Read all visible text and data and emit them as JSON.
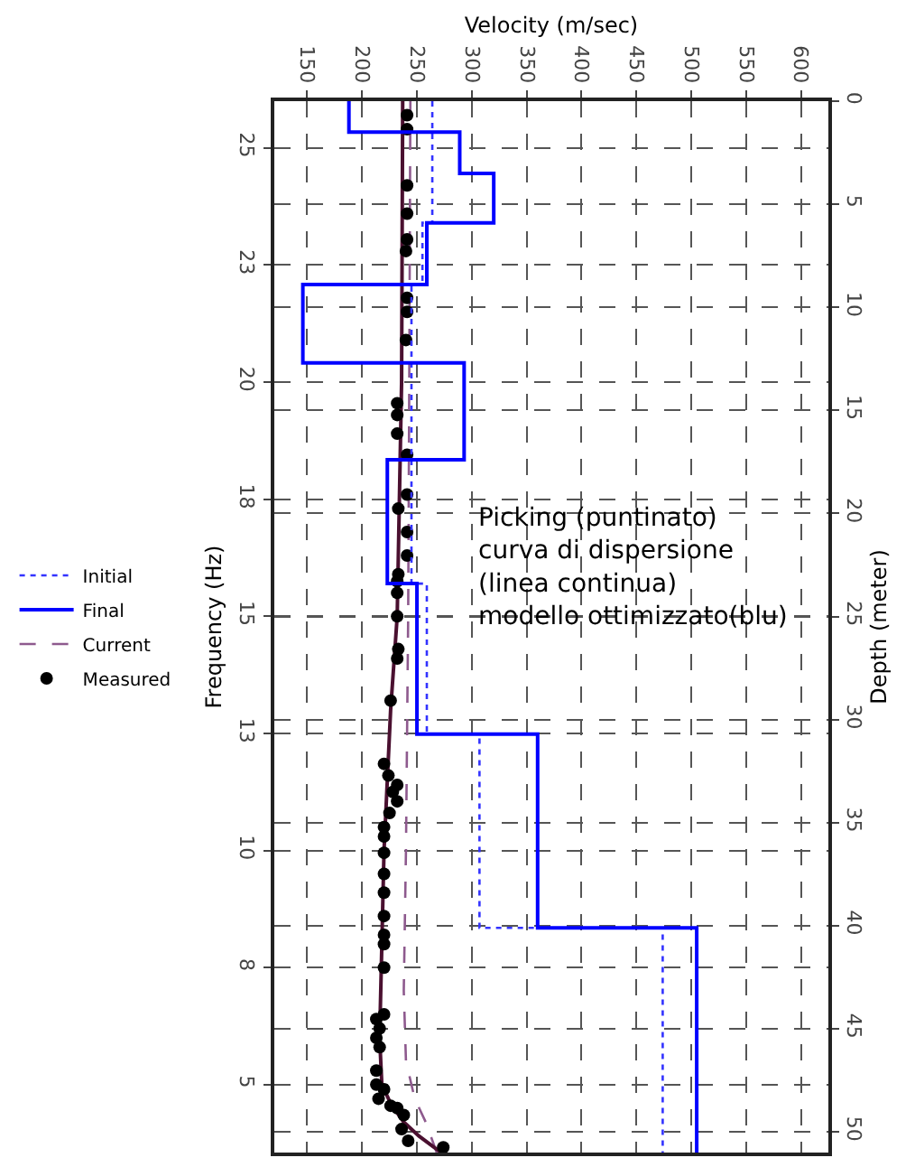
{
  "chart_data": {
    "type": "line",
    "xlabel": "Velocity (m/sec)",
    "ylabel": "Frequency (Hz)",
    "y2label": "Depth (meter)",
    "xlim": [
      120,
      625
    ],
    "xticks": [
      150,
      200,
      250,
      300,
      350,
      400,
      450,
      500,
      550,
      600
    ],
    "ylim": [
      3.55,
      26
    ],
    "yticks": [
      25,
      {
        "value": 22.5,
        "label": "23"
      },
      20,
      {
        "value": 17.5,
        "label": "18"
      },
      15,
      {
        "value": 12.5,
        "label": "13"
      },
      10,
      {
        "value": 7.5,
        "label": "8"
      },
      5
    ],
    "y2lim": [
      51,
      0
    ],
    "y2ticks": [
      0,
      5,
      10,
      15,
      20,
      25,
      30,
      35,
      40,
      45,
      50
    ],
    "grid": true,
    "legend": "left",
    "annotations": [
      "Picking (puntinato)\ncurva di dispersione\n(linea continua)\nmodello ottimizzato(blu)"
    ],
    "series": [
      {
        "name": "Initial",
        "color": "#3333ff",
        "axis": "y2",
        "line_style": "dotted",
        "x": [
          264,
          264,
          255,
          255,
          245,
          245,
          259,
          259,
          307,
          307,
          474,
          474
        ],
        "values": [
          0,
          5.9,
          5.9,
          8.9,
          8.9,
          23.4,
          23.4,
          30.7,
          30.7,
          40.1,
          40.1,
          51
        ]
      },
      {
        "name": "Final",
        "color": "#0000ff",
        "axis": "y2",
        "line_style": "solid",
        "x": [
          188,
          188,
          289,
          289,
          320,
          320,
          259,
          259,
          146,
          146,
          293,
          293,
          223,
          223,
          250,
          250,
          360,
          360,
          505,
          505
        ],
        "values": [
          0,
          1.5,
          1.5,
          3.5,
          3.5,
          5.9,
          5.9,
          8.9,
          8.9,
          12.7,
          12.7,
          17.4,
          17.4,
          23.4,
          23.4,
          30.7,
          30.7,
          40.1,
          40.1,
          51
        ]
      },
      {
        "name": "Current",
        "color": "#8e5a8e",
        "line_style": "dashed",
        "x": [
          244,
          243,
          242,
          240,
          238,
          240,
          248,
          258,
          268
        ],
        "values": [
          26,
          20,
          15,
          10,
          7,
          5.5,
          4.7,
          4.2,
          3.55
        ]
      },
      {
        "color": "#4a1030",
        "line_style": "solid",
        "x": [
          237,
          236,
          232,
          226,
          222,
          220,
          218,
          216,
          218,
          226,
          238,
          252,
          272
        ],
        "values": [
          26,
          20,
          15,
          13,
          11,
          10,
          8,
          6,
          5,
          4.6,
          4.2,
          3.9,
          3.55
        ]
      },
      {
        "name": "Measured",
        "color": "#000000",
        "type": "scatter",
        "marker": "circle",
        "x": [
          241,
          241,
          241,
          241,
          241,
          240,
          241,
          241,
          240,
          232,
          232,
          232,
          241,
          241,
          233,
          241,
          241,
          233,
          232,
          232,
          232,
          233,
          232,
          226,
          220,
          224,
          232,
          228,
          232,
          225,
          220,
          220,
          220,
          220,
          220,
          220,
          220,
          220,
          220,
          220,
          213,
          216,
          213,
          216,
          213,
          213,
          220,
          215,
          226,
          232,
          238,
          236,
          242,
          274
        ],
        "values": [
          25.7,
          25.4,
          24.2,
          23.6,
          23.05,
          22.8,
          21.8,
          21.5,
          20.9,
          19.55,
          19.3,
          18.9,
          18.45,
          17.6,
          17.3,
          16.8,
          16.3,
          15.9,
          15.75,
          15.5,
          15.0,
          14.3,
          14.1,
          13.2,
          11.85,
          11.6,
          11.4,
          11.25,
          11.05,
          10.8,
          10.5,
          10.3,
          9.95,
          9.5,
          9.1,
          8.6,
          8.2,
          8.0,
          7.5,
          6.5,
          6.4,
          6.2,
          6.0,
          5.8,
          5.3,
          5.0,
          4.9,
          4.7,
          4.55,
          4.5,
          4.35,
          4.05,
          3.8,
          3.66
        ]
      }
    ]
  }
}
